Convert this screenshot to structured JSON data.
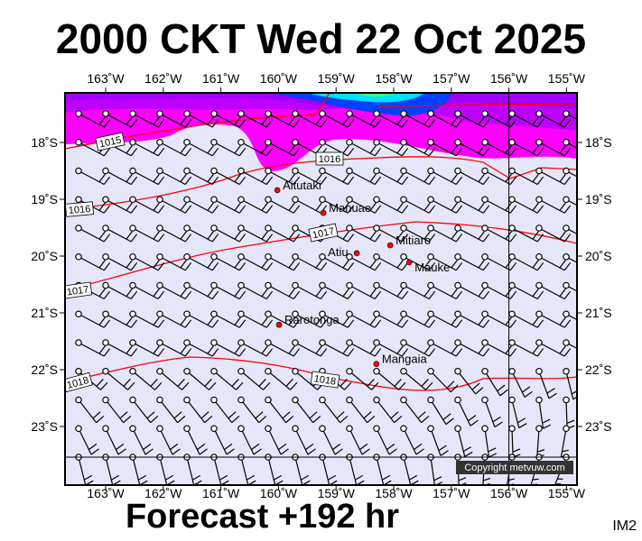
{
  "header": {
    "title": "2000 CKT Wed 22 Oct 2025"
  },
  "footer": {
    "forecast": "Forecast +192 hr",
    "code": "IM2",
    "copyright": "Copyright metvuw.com"
  },
  "map": {
    "lon_labels": [
      "163˚W",
      "162˚W",
      "161˚W",
      "160˚W",
      "159˚W",
      "158˚W",
      "157˚W",
      "156˚W",
      "155˚W"
    ],
    "lat_labels": [
      "18˚S",
      "19˚S",
      "20˚S",
      "21˚S",
      "22˚S",
      "23˚S"
    ],
    "islands": [
      {
        "name": "Aitutaki",
        "lon": -160.02,
        "lat": -18.84
      },
      {
        "name": "Manuae",
        "lon": -159.22,
        "lat": -19.24
      },
      {
        "name": "Atiu",
        "lon": -158.64,
        "lat": -19.95
      },
      {
        "name": "Mitiaro",
        "lon": -158.06,
        "lat": -19.81
      },
      {
        "name": "Mauke",
        "lon": -157.73,
        "lat": -20.11
      },
      {
        "name": "Rarotonga",
        "lon": -159.99,
        "lat": -21.21
      },
      {
        "name": "Mangaia",
        "lon": -158.3,
        "lat": -21.9
      }
    ],
    "isobar_labels": [
      "1015",
      "1016",
      "1016",
      "1017",
      "1017",
      "1018",
      "1018"
    ],
    "colors": {
      "background": "#e6e6fa",
      "isobar": "#ff0000",
      "island": "#ff0000",
      "shade_magenta": "#ff00ff",
      "shade_violet": "#a000ff",
      "shade_blue": "#0040ff",
      "shade_cyan": "#00e0ff"
    }
  }
}
